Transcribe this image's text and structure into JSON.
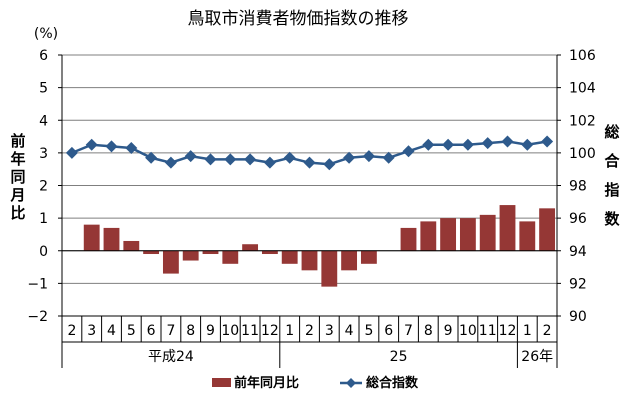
{
  "chart_data": {
    "type": "bar+line",
    "title": "鳥取市消費者物価指数の推移",
    "left_axis": {
      "unit": "(%)",
      "label_chars": [
        "前",
        "年",
        "同",
        "月",
        "比"
      ],
      "ylim": [
        -2,
        6
      ],
      "ticks": [
        6,
        5,
        4,
        3,
        2,
        1,
        0,
        -1,
        -2
      ],
      "tick_labels": [
        "6",
        "5",
        "4",
        "3",
        "2",
        "1",
        "0",
        "−1",
        "−2"
      ]
    },
    "right_axis": {
      "label_chars": [
        "総",
        "合",
        "指",
        "数"
      ],
      "ylim": [
        90,
        106
      ],
      "ticks": [
        106,
        104,
        102,
        100,
        98,
        96,
        94,
        92,
        90
      ],
      "tick_labels": [
        "106",
        "104",
        "102",
        "100",
        "98",
        "96",
        "94",
        "92",
        "90"
      ]
    },
    "categories": [
      "2",
      "3",
      "4",
      "5",
      "6",
      "7",
      "8",
      "9",
      "10",
      "11",
      "12",
      "1",
      "2",
      "3",
      "4",
      "5",
      "6",
      "7",
      "8",
      "9",
      "10",
      "11",
      "12",
      "1",
      "2"
    ],
    "year_groups": [
      {
        "label": "平成24",
        "start": 0,
        "end": 10
      },
      {
        "label": "25",
        "start": 11,
        "end": 22
      },
      {
        "label": "26年",
        "start": 23,
        "end": 24
      }
    ],
    "series": [
      {
        "name": "前年同月比",
        "type": "bar",
        "axis": "left",
        "color": "#953735",
        "values": [
          0.0,
          0.8,
          0.7,
          0.3,
          -0.1,
          -0.7,
          -0.3,
          -0.1,
          -0.4,
          0.2,
          -0.1,
          -0.4,
          -0.6,
          -1.1,
          -0.6,
          -0.4,
          0.0,
          0.7,
          0.9,
          1.0,
          1.0,
          1.1,
          1.4,
          0.9,
          1.3
        ]
      },
      {
        "name": "総合指数",
        "type": "line",
        "axis": "right",
        "color": "#2E5A8C",
        "values": [
          100.0,
          100.5,
          100.4,
          100.3,
          99.7,
          99.4,
          99.8,
          99.6,
          99.6,
          99.6,
          99.4,
          99.7,
          99.4,
          99.3,
          99.7,
          99.8,
          99.7,
          100.1,
          100.5,
          100.5,
          100.5,
          100.6,
          100.7,
          100.5,
          100.7
        ]
      }
    ],
    "grid": true,
    "legend_position": "bottom-center"
  }
}
